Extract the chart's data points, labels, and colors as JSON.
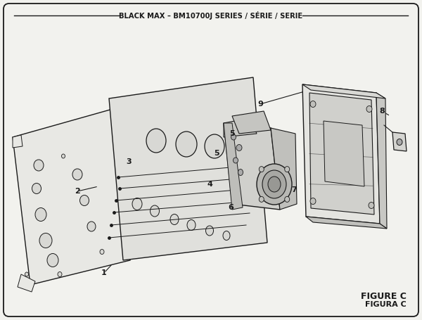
{
  "title": "BLACK MAX – BM10700J SERIES / SÉRIE / SERIE",
  "figure_label": "FIGURE C",
  "figure_label2": "FIGURA C",
  "bg_color": "#f2f2ee",
  "border_color": "#222222",
  "line_color": "#1a1a1a",
  "fill_light": "#e8e8e4",
  "fill_mid": "#d8d8d4",
  "fill_dark": "#c8c8c4"
}
